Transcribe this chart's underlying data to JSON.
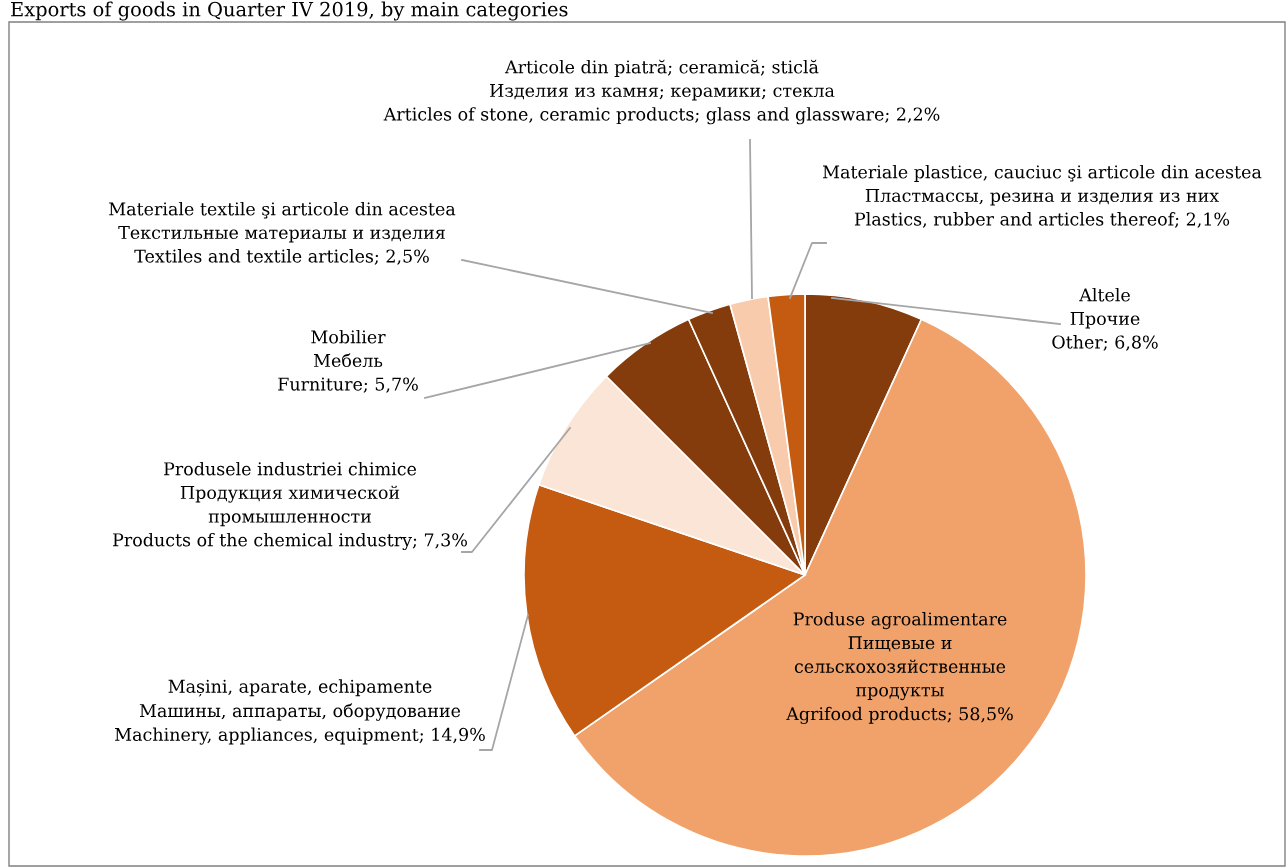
{
  "chart_data": {
    "type": "pie",
    "title": "Exports of goods in Quarter IV 2019, by main categories",
    "categories": [
      "Altele\nПрочие\nOther",
      "Produse agroalimentare\nПищевые и\nсельскохозяйственные\nпродукты\nAgrifood products",
      "Mașini, aparate, echipamente\nМашины, аппараты, оборудование\nMachinery, appliances, equipment",
      "Produsele industriei chimice\nПродукция химической\nпромышленности\nProducts of the chemical industry",
      "Mobilier\nМебель\nFurniture",
      "Materiale textile şi articole din acestea\nТекстильные материалы и изделия\nTextiles and textile articles",
      "Articole din piatră; ceramică; sticlă\nИзделия из камня; керамики; стекла\nArticles of stone, ceramic products; glass and glassware",
      "Materiale plastice, cauciuc şi articole din acestea\nПластмассы, резина и изделия из них\nPlastics, rubber and articles thereof"
    ],
    "values": [
      6.8,
      58.5,
      14.9,
      7.3,
      5.7,
      2.5,
      2.2,
      2.1
    ],
    "value_labels": [
      "6,8%",
      "58,5%",
      "14,9%",
      "7,3%",
      "5,7%",
      "2,5%",
      "2,2%",
      "2,1%"
    ],
    "colors": [
      "#843c0c",
      "#f1a26a",
      "#c55a11",
      "#fbe5d6",
      "#843c0c",
      "#843c0c",
      "#f8cbad",
      "#c55a11"
    ]
  }
}
